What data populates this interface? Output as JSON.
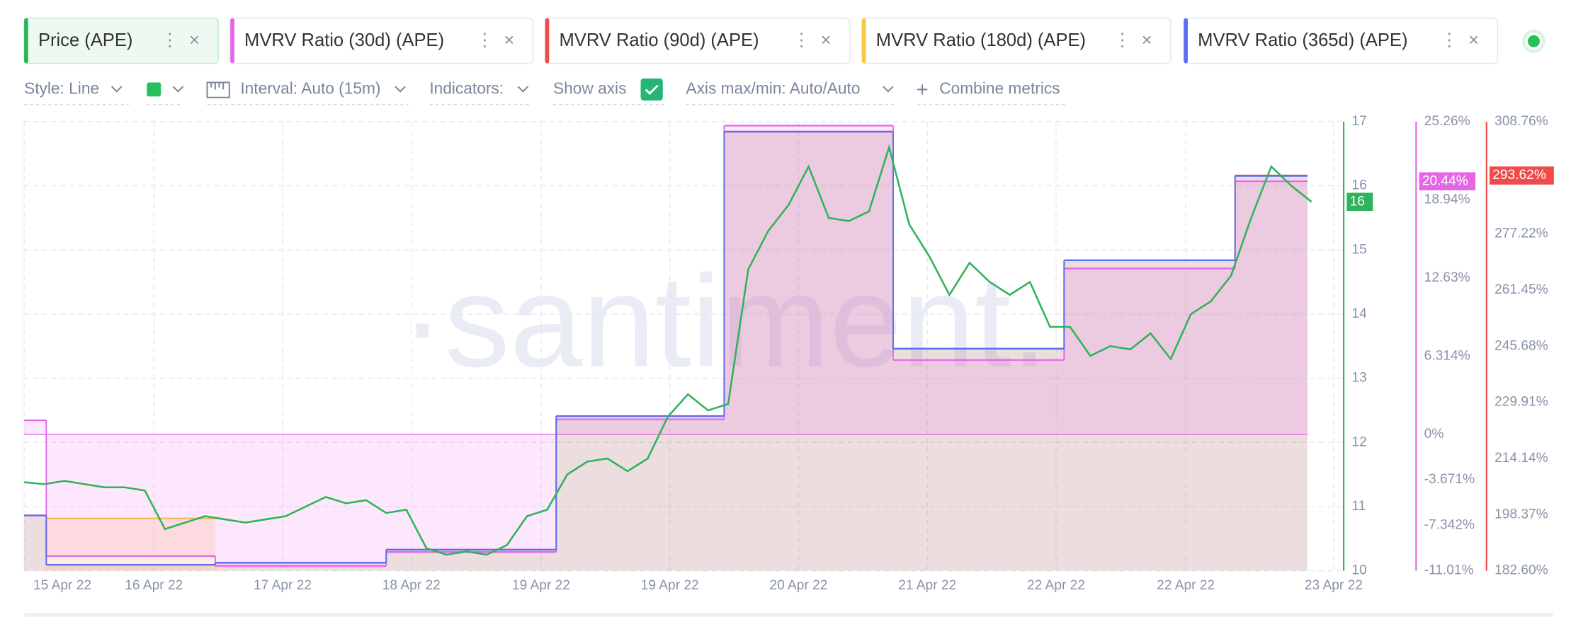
{
  "tabs_close": "×",
  "tabs_menu": "⋮",
  "toolbar": {
    "style": "Style: Line",
    "interval": "Interval: Auto (15m)",
    "indicators": "Indicators:",
    "show_axis": "Show axis",
    "axis_range": "Axis max/min: Auto/Auto",
    "combine": "Combine metrics"
  },
  "chart_data": {
    "type": "line",
    "watermark": "·santiment.",
    "x_labels": [
      "15 Apr 22",
      "16 Apr 22",
      "17 Apr 22",
      "18 Apr 22",
      "19 Apr 22",
      "19 Apr 22",
      "20 Apr 22",
      "21 Apr 22",
      "22 Apr 22",
      "22 Apr 22",
      "23 Apr 22"
    ],
    "ylim": [
      10,
      17
    ],
    "yticks": [
      10,
      11,
      12,
      13,
      14,
      15,
      16,
      17
    ],
    "y2lim": [
      -11.01,
      25.26
    ],
    "y2ticks": [
      {
        "value": -11.01,
        "label": "-11.01%"
      },
      {
        "value": -7.342,
        "label": "-7.342%"
      },
      {
        "value": -3.671,
        "label": "-3.671%"
      },
      {
        "value": 0,
        "label": "0%"
      },
      {
        "value": 6.314,
        "label": "6.314%"
      },
      {
        "value": 12.63,
        "label": "12.63%"
      },
      {
        "value": 18.94,
        "label": "18.94%"
      },
      {
        "value": 25.26,
        "label": "25.26%"
      }
    ],
    "y3lim": [
      182.6,
      308.76
    ],
    "y3ticks": [
      {
        "value": 182.6,
        "label": "182.60%"
      },
      {
        "value": 198.37,
        "label": "198.37%"
      },
      {
        "value": 214.14,
        "label": "214.14%"
      },
      {
        "value": 229.91,
        "label": "229.91%"
      },
      {
        "value": 245.68,
        "label": "245.68%"
      },
      {
        "value": 261.45,
        "label": "261.45%"
      },
      {
        "value": 277.22,
        "label": "277.22%"
      },
      {
        "value": 308.76,
        "label": "308.76%"
      }
    ],
    "grid": true,
    "series": [
      {
        "name": "Price (APE)",
        "color": "#2fb35a",
        "last_label": "16",
        "values": [
          11.38,
          11.35,
          11.4,
          11.35,
          11.3,
          11.3,
          11.25,
          10.65,
          10.75,
          10.85,
          10.8,
          10.75,
          10.8,
          10.85,
          11.0,
          11.15,
          11.05,
          11.1,
          10.9,
          10.95,
          10.35,
          10.25,
          10.3,
          10.25,
          10.4,
          10.85,
          10.95,
          11.5,
          11.7,
          11.75,
          11.55,
          11.75,
          12.4,
          12.75,
          12.5,
          12.6,
          14.7,
          15.3,
          15.7,
          16.3,
          15.5,
          15.45,
          15.6,
          16.6,
          15.4,
          14.9,
          14.3,
          14.8,
          14.5,
          14.3,
          14.5,
          13.8,
          13.8,
          13.35,
          13.5,
          13.45,
          13.7,
          13.3,
          14.0,
          14.2,
          14.6,
          15.5,
          16.3,
          16.0,
          15.75
        ]
      },
      {
        "name": "MVRV Ratio (30d) (APE)",
        "color": "#e567e5",
        "axis": "y2",
        "last_label": "20.44%",
        "values": [
          1.14,
          -9.83,
          -10.64,
          -9.5,
          1.22,
          24.94,
          6.01,
          13.4,
          20.44
        ]
      },
      {
        "name": "MVRV Ratio (90d) (APE)",
        "color": "#f04a4a",
        "axis": "y3",
        "last_label": "293.62%",
        "values": [
          198.12,
          184.29,
          184.86,
          188.52,
          226.06,
          305.94,
          244.97,
          269.81,
          293.62
        ]
      },
      {
        "name": "MVRV Ratio (180d) (APE)",
        "color": "#f7c843",
        "axis": "y3",
        "values": [
          null,
          197.27,
          null,
          null,
          null,
          null,
          null,
          null,
          null
        ]
      },
      {
        "name": "MVRV Ratio (365d) (APE)",
        "color": "#5b6ef5",
        "axis": "y3",
        "values": [
          198.12,
          184.29,
          184.86,
          188.52,
          226.06,
          305.94,
          244.97,
          269.81,
          293.52
        ]
      }
    ]
  }
}
